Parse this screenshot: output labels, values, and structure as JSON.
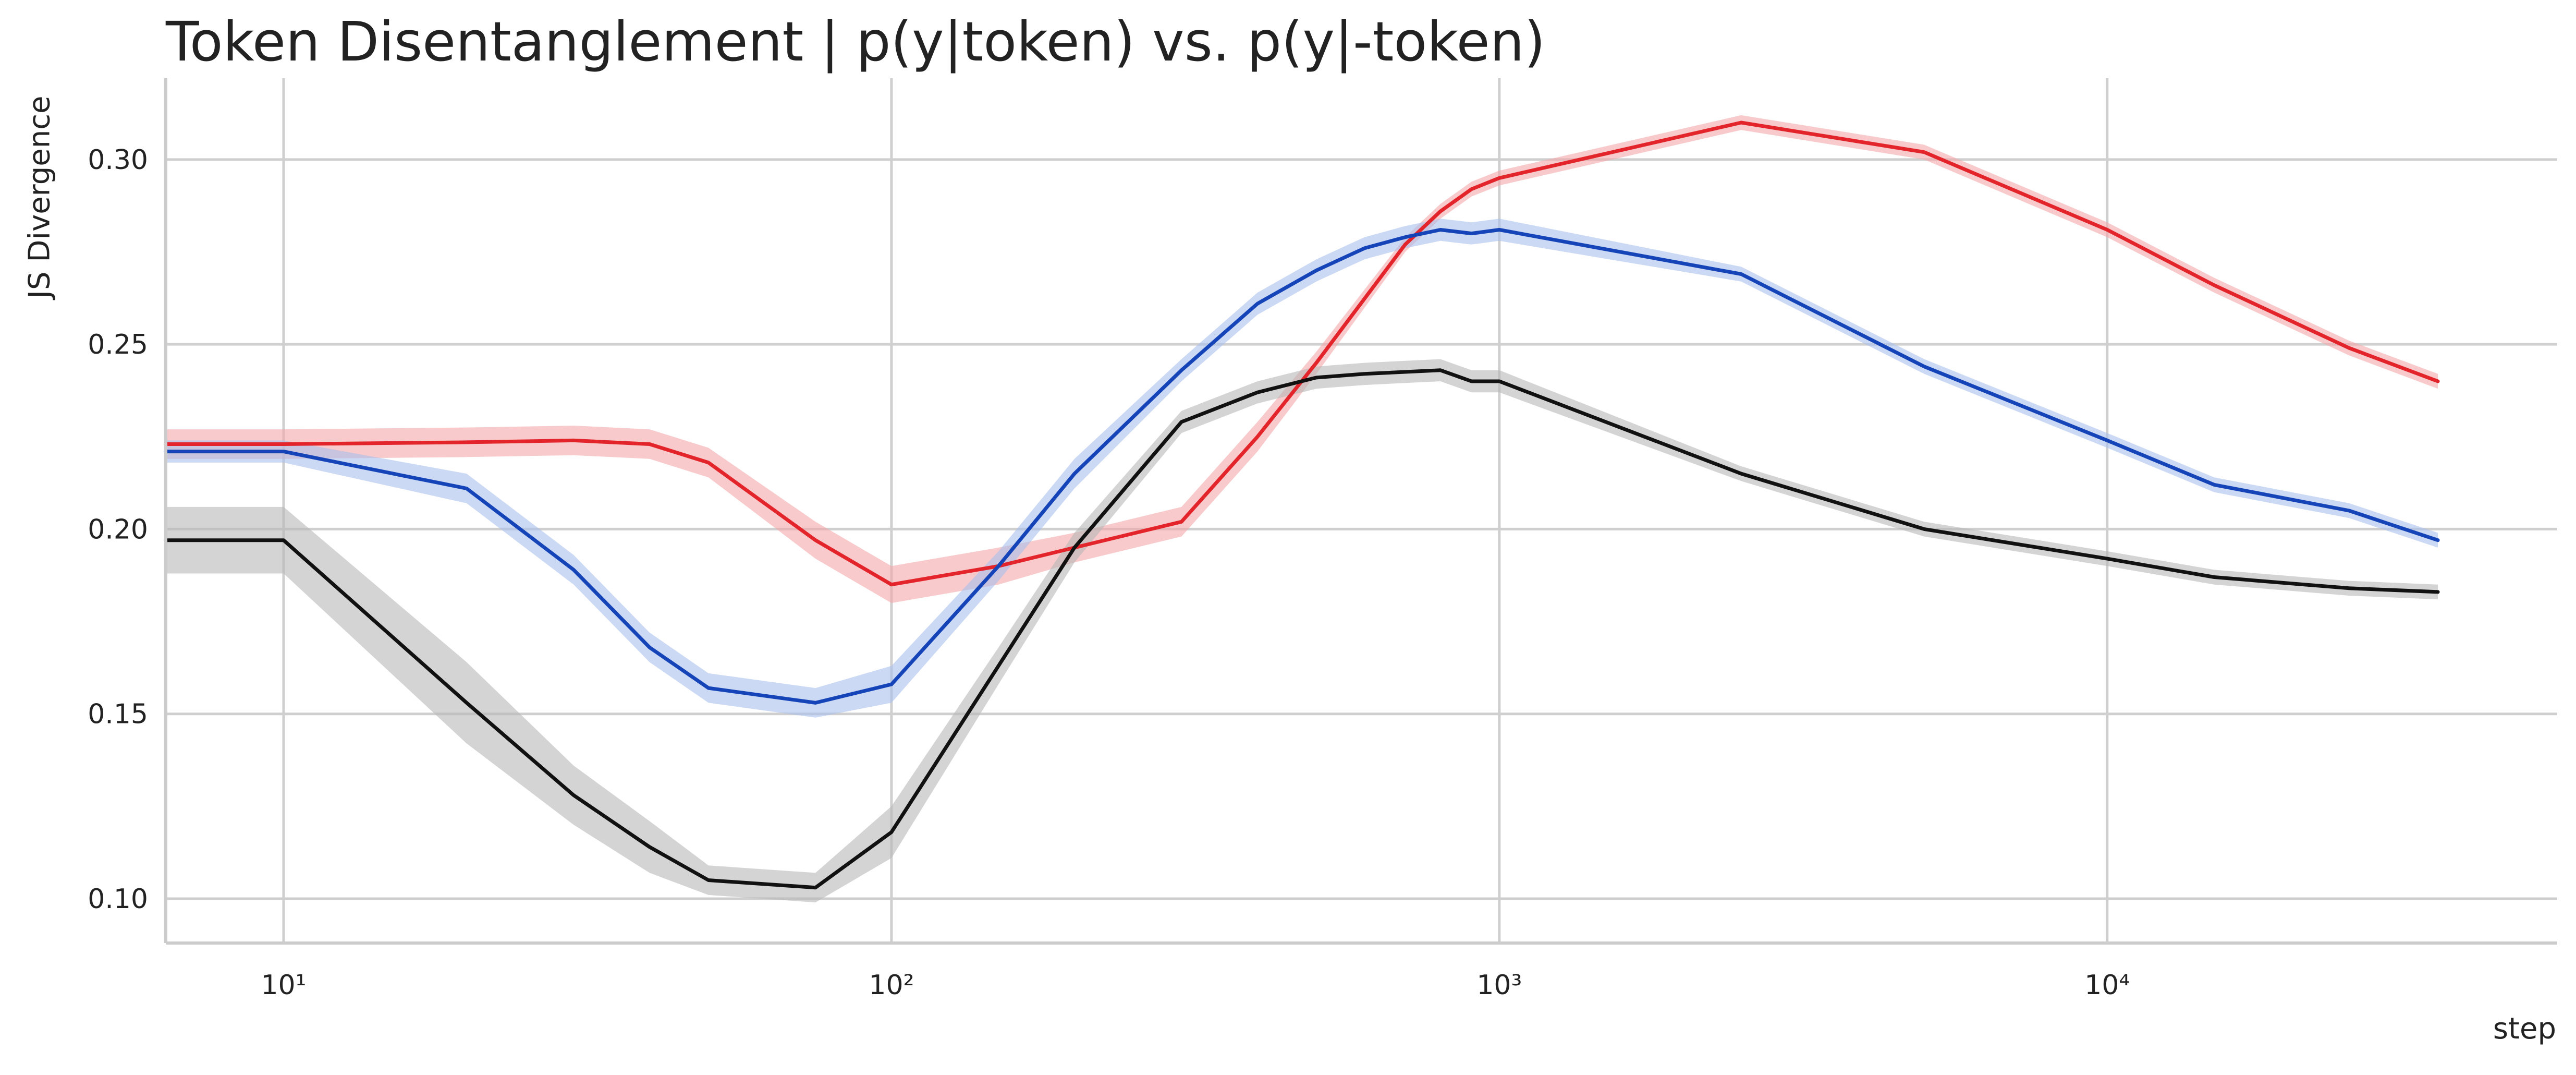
{
  "chart_data": {
    "type": "line",
    "title": "Token Disentanglement | p(y|token) vs. p(y|-token)",
    "xlabel": "step",
    "ylabel": "JS Divergence",
    "xscale": "log",
    "xlim": [
      6.4,
      55000
    ],
    "ylim": [
      0.088,
      0.322
    ],
    "x_ticks": [
      {
        "value": 10,
        "label": "10¹"
      },
      {
        "value": 100,
        "label": "10²"
      },
      {
        "value": 1000,
        "label": "10³"
      },
      {
        "value": 10000,
        "label": "10⁴"
      }
    ],
    "y_ticks": [
      {
        "value": 0.1,
        "label": "0.10"
      },
      {
        "value": 0.15,
        "label": "0.15"
      },
      {
        "value": 0.2,
        "label": "0.20"
      },
      {
        "value": 0.25,
        "label": "0.25"
      },
      {
        "value": 0.3,
        "label": "0.30"
      }
    ],
    "grid": true,
    "legend": "none",
    "series": [
      {
        "color": "#e3242b",
        "band_color": "#f4a6a8",
        "x": [
          6.4,
          10,
          20,
          30,
          40,
          50,
          75,
          100,
          150,
          200,
          300,
          400,
          500,
          700,
          800,
          900,
          1000,
          2500,
          5000,
          10000,
          15000,
          25000,
          35000
        ],
        "y": [
          0.223,
          0.223,
          0.2235,
          0.224,
          0.223,
          0.218,
          0.197,
          0.185,
          0.19,
          0.195,
          0.202,
          0.225,
          0.245,
          0.277,
          0.286,
          0.292,
          0.295,
          0.31,
          0.302,
          0.281,
          0.266,
          0.249,
          0.24
        ],
        "band": [
          0.004,
          0.004,
          0.004,
          0.004,
          0.004,
          0.004,
          0.005,
          0.005,
          0.005,
          0.004,
          0.004,
          0.004,
          0.003,
          0.002,
          0.002,
          0.002,
          0.002,
          0.002,
          0.002,
          0.002,
          0.002,
          0.002,
          0.002
        ]
      },
      {
        "color": "#1444b8",
        "band_color": "#a9bfec",
        "x": [
          6.4,
          10,
          20,
          30,
          40,
          50,
          75,
          100,
          150,
          200,
          300,
          400,
          500,
          600,
          700,
          800,
          900,
          1000,
          2500,
          5000,
          10000,
          15000,
          25000,
          35000
        ],
        "y": [
          0.221,
          0.221,
          0.211,
          0.189,
          0.168,
          0.157,
          0.153,
          0.158,
          0.19,
          0.215,
          0.243,
          0.261,
          0.27,
          0.276,
          0.279,
          0.281,
          0.28,
          0.281,
          0.269,
          0.244,
          0.224,
          0.212,
          0.205,
          0.197
        ],
        "band": [
          0.003,
          0.003,
          0.004,
          0.004,
          0.004,
          0.004,
          0.004,
          0.005,
          0.004,
          0.004,
          0.003,
          0.003,
          0.003,
          0.003,
          0.003,
          0.003,
          0.003,
          0.003,
          0.002,
          0.002,
          0.002,
          0.002,
          0.002,
          0.002
        ]
      },
      {
        "color": "#111111",
        "band_color": "#b8b8b8",
        "x": [
          6.4,
          10,
          20,
          30,
          40,
          50,
          75,
          100,
          150,
          200,
          300,
          400,
          500,
          600,
          800,
          900,
          1000,
          2500,
          5000,
          10000,
          15000,
          25000,
          35000
        ],
        "y": [
          0.197,
          0.197,
          0.153,
          0.128,
          0.114,
          0.105,
          0.103,
          0.118,
          0.163,
          0.195,
          0.229,
          0.237,
          0.241,
          0.242,
          0.243,
          0.24,
          0.24,
          0.215,
          0.2,
          0.192,
          0.187,
          0.184,
          0.183
        ],
        "band": [
          0.009,
          0.009,
          0.011,
          0.008,
          0.007,
          0.004,
          0.004,
          0.007,
          0.005,
          0.004,
          0.003,
          0.003,
          0.003,
          0.003,
          0.003,
          0.003,
          0.003,
          0.002,
          0.002,
          0.002,
          0.002,
          0.002,
          0.002
        ]
      }
    ]
  }
}
